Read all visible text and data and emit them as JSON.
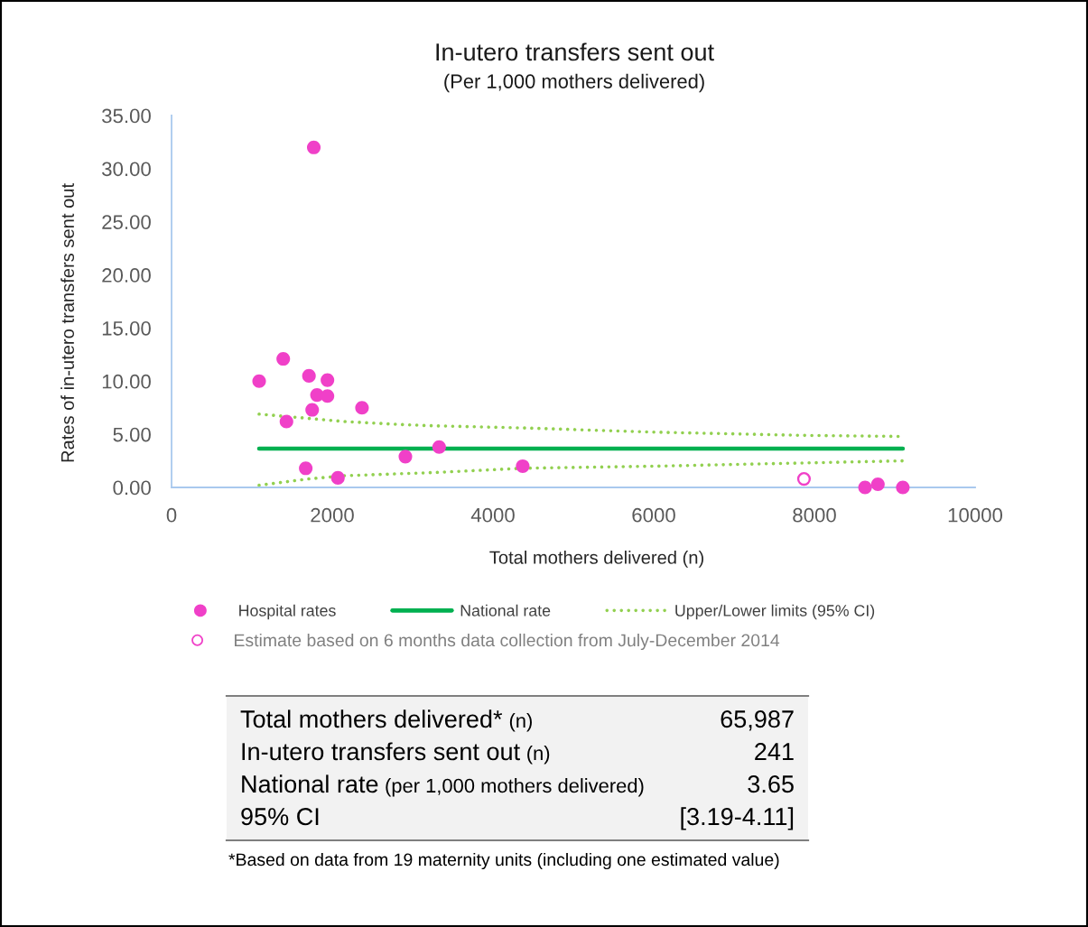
{
  "chart_data": {
    "type": "scatter",
    "title": "In-utero transfers sent out",
    "subtitle": "(Per 1,000 mothers delivered)",
    "xlabel": "Total mothers delivered (n)",
    "ylabel": "Rates of in-utero transfers sent out",
    "xlim": [
      0,
      10000
    ],
    "xticks": [
      0,
      2000,
      4000,
      6000,
      8000,
      10000
    ],
    "ylim": [
      0,
      35
    ],
    "yticks": [
      {
        "value": 0,
        "label": "0.00"
      },
      {
        "value": 5,
        "label": "5.00"
      },
      {
        "value": 10,
        "label": "10.00"
      },
      {
        "value": 15,
        "label": "15.00"
      },
      {
        "value": 20,
        "label": "20.00"
      },
      {
        "value": 25,
        "label": "25.00"
      },
      {
        "value": 30,
        "label": "30.00"
      },
      {
        "value": 35,
        "label": "35.00"
      }
    ],
    "legend": "bottom",
    "series": [
      {
        "name": "Hospital rates",
        "marker": "circle",
        "color": "#f040c8",
        "x": [
          1090,
          1390,
          1430,
          1670,
          1710,
          1750,
          1770,
          1810,
          1940,
          1940,
          2070,
          2370,
          2910,
          3330,
          4370,
          8630,
          8790,
          9100
        ],
        "values": [
          10.0,
          12.1,
          6.2,
          1.8,
          10.5,
          7.3,
          32.0,
          8.7,
          10.1,
          8.6,
          0.9,
          7.5,
          2.9,
          3.8,
          2.0,
          0,
          0.3,
          0
        ]
      },
      {
        "name": "National rate",
        "type": "line",
        "line_style": "solid",
        "color": "#00b050",
        "x": [
          1090,
          9100
        ],
        "values": [
          3.65,
          3.65
        ]
      },
      {
        "name": "Upper/Lower limits (95% CI)",
        "type": "line",
        "line_style": "dotted",
        "color": "#92d050",
        "x": [
          1090,
          1700,
          2150,
          2900,
          3260,
          4370,
          6020,
          7850,
          9050
        ],
        "values": [
          6.9,
          6.5,
          6.2,
          5.9,
          5.8,
          5.6,
          5.2,
          4.9,
          4.8
        ]
      },
      {
        "type": "line",
        "line_style": "dotted",
        "color": "#92d050",
        "x": [
          1090,
          1700,
          2150,
          3260,
          4370,
          6020,
          7850,
          9100
        ],
        "values": [
          0.2,
          0.8,
          1.1,
          1.4,
          1.8,
          2.0,
          2.3,
          2.5
        ]
      },
      {
        "name": "Estimate based on 6 months data collection from July-December 2014",
        "marker": "circle",
        "color": "#f040c8",
        "x": [
          7870
        ],
        "values": [
          0.8
        ]
      }
    ],
    "annotations": [
      "Total mothers delivered*",
      "(n)",
      "65,987",
      "In-utero transfers sent out",
      "(n)",
      "241",
      "National rate",
      "(per 1,000 mothers delivered)",
      "3.65",
      "95% CI",
      null,
      "[3.19-4.11]",
      "*Based on data from 19 maternity units (including one estimated value)"
    ]
  }
}
